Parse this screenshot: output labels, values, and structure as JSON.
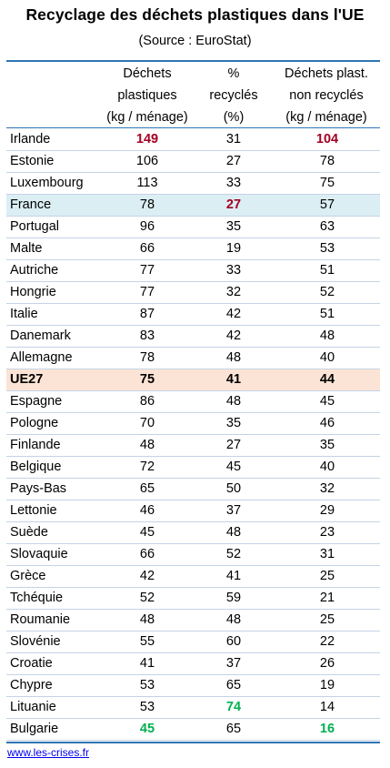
{
  "chart_data": {
    "type": "table",
    "title": "Recyclage des déchets plastiques dans l'UE",
    "subtitle": "(Source : EuroStat)",
    "columns": [
      {
        "lines": [
          "",
          "",
          ""
        ]
      },
      {
        "lines": [
          "Déchets",
          "plastiques",
          "(kg / ménage)"
        ]
      },
      {
        "lines": [
          "%",
          "recyclés",
          "(%)"
        ]
      },
      {
        "lines": [
          "Déchets plast.",
          "non recyclés",
          "(kg / ménage)"
        ]
      }
    ],
    "rows": [
      {
        "country": "Irlande",
        "waste": "149",
        "recycled": "31",
        "non_recycled": "104",
        "colors": [
          "red",
          "",
          "red"
        ]
      },
      {
        "country": "Estonie",
        "waste": "106",
        "recycled": "27",
        "non_recycled": "78"
      },
      {
        "country": "Luxembourg",
        "waste": "113",
        "recycled": "33",
        "non_recycled": "75"
      },
      {
        "country": "France",
        "waste": "78",
        "recycled": "27",
        "non_recycled": "57",
        "highlight": "france",
        "colors": [
          "",
          "red",
          ""
        ]
      },
      {
        "country": "Portugal",
        "waste": "96",
        "recycled": "35",
        "non_recycled": "63"
      },
      {
        "country": "Malte",
        "waste": "66",
        "recycled": "19",
        "non_recycled": "53"
      },
      {
        "country": "Autriche",
        "waste": "77",
        "recycled": "33",
        "non_recycled": "51"
      },
      {
        "country": "Hongrie",
        "waste": "77",
        "recycled": "32",
        "non_recycled": "52"
      },
      {
        "country": "Italie",
        "waste": "87",
        "recycled": "42",
        "non_recycled": "51"
      },
      {
        "country": "Danemark",
        "waste": "83",
        "recycled": "42",
        "non_recycled": "48"
      },
      {
        "country": "Allemagne",
        "waste": "78",
        "recycled": "48",
        "non_recycled": "40"
      },
      {
        "country": "UE27",
        "waste": "75",
        "recycled": "41",
        "non_recycled": "44",
        "highlight": "ue27"
      },
      {
        "country": "Espagne",
        "waste": "86",
        "recycled": "48",
        "non_recycled": "45"
      },
      {
        "country": "Pologne",
        "waste": "70",
        "recycled": "35",
        "non_recycled": "46"
      },
      {
        "country": "Finlande",
        "waste": "48",
        "recycled": "27",
        "non_recycled": "35"
      },
      {
        "country": "Belgique",
        "waste": "72",
        "recycled": "45",
        "non_recycled": "40"
      },
      {
        "country": "Pays-Bas",
        "waste": "65",
        "recycled": "50",
        "non_recycled": "32"
      },
      {
        "country": "Lettonie",
        "waste": "46",
        "recycled": "37",
        "non_recycled": "29"
      },
      {
        "country": "Suède",
        "waste": "45",
        "recycled": "48",
        "non_recycled": "23"
      },
      {
        "country": "Slovaquie",
        "waste": "66",
        "recycled": "52",
        "non_recycled": "31"
      },
      {
        "country": "Grèce",
        "waste": "42",
        "recycled": "41",
        "non_recycled": "25"
      },
      {
        "country": "Tchéquie",
        "waste": "52",
        "recycled": "59",
        "non_recycled": "21"
      },
      {
        "country": "Roumanie",
        "waste": "48",
        "recycled": "48",
        "non_recycled": "25"
      },
      {
        "country": "Slovénie",
        "waste": "55",
        "recycled": "60",
        "non_recycled": "22"
      },
      {
        "country": "Croatie",
        "waste": "41",
        "recycled": "37",
        "non_recycled": "26"
      },
      {
        "country": "Chypre",
        "waste": "53",
        "recycled": "65",
        "non_recycled": "19"
      },
      {
        "country": "Lituanie",
        "waste": "53",
        "recycled": "74",
        "non_recycled": "14",
        "colors": [
          "",
          "green",
          ""
        ]
      },
      {
        "country": "Bulgarie",
        "waste": "45",
        "recycled": "65",
        "non_recycled": "16",
        "colors": [
          "green",
          "",
          "green"
        ]
      }
    ],
    "colors": {
      "rule": "#2e75b6",
      "red": "#a50021",
      "green": "#00b050",
      "france_bg": "#dbeef4",
      "ue27_bg": "#fbe4d5"
    }
  },
  "footer": {
    "link_text": "www.les-crises.fr"
  }
}
